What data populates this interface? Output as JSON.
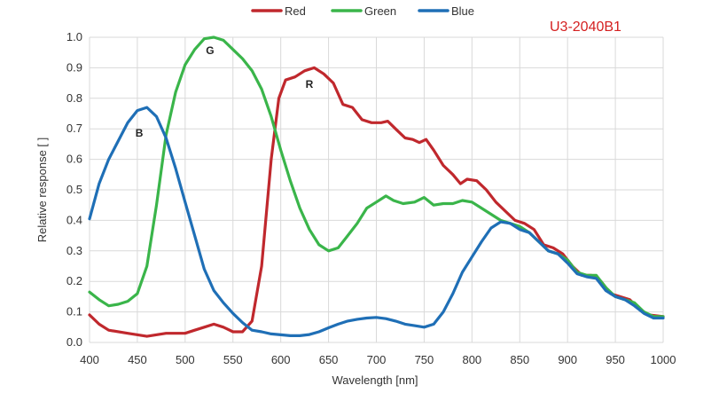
{
  "chart_data": {
    "type": "line",
    "title": "",
    "model_label": "U3-2040B1",
    "xlabel": "Wavelength [nm]",
    "ylabel": "Relative response [ ]",
    "xlim": [
      400,
      1000
    ],
    "ylim": [
      0,
      1.0
    ],
    "x_ticks": [
      "400",
      "450",
      "500",
      "550",
      "600",
      "650",
      "700",
      "750",
      "800",
      "850",
      "900",
      "950",
      "1000"
    ],
    "y_ticks": [
      "0.0",
      "0.1",
      "0.2",
      "0.3",
      "0.4",
      "0.5",
      "0.6",
      "0.7",
      "0.8",
      "0.9",
      "1.0"
    ],
    "grid": true,
    "legend_position": "top-center",
    "annotations": [
      {
        "text": "G",
        "x": 526,
        "y": 0.945
      },
      {
        "text": "R",
        "x": 630,
        "y": 0.835
      },
      {
        "text": "B",
        "x": 452,
        "y": 0.675
      }
    ],
    "series": [
      {
        "name": "Red",
        "color": "#c0282d",
        "points": [
          [
            400,
            0.09
          ],
          [
            410,
            0.06
          ],
          [
            420,
            0.04
          ],
          [
            440,
            0.03
          ],
          [
            460,
            0.02
          ],
          [
            480,
            0.03
          ],
          [
            500,
            0.03
          ],
          [
            510,
            0.04
          ],
          [
            520,
            0.05
          ],
          [
            530,
            0.06
          ],
          [
            540,
            0.05
          ],
          [
            550,
            0.035
          ],
          [
            560,
            0.035
          ],
          [
            570,
            0.07
          ],
          [
            580,
            0.25
          ],
          [
            590,
            0.6
          ],
          [
            598,
            0.8
          ],
          [
            605,
            0.86
          ],
          [
            615,
            0.87
          ],
          [
            625,
            0.89
          ],
          [
            635,
            0.9
          ],
          [
            645,
            0.88
          ],
          [
            655,
            0.85
          ],
          [
            665,
            0.78
          ],
          [
            675,
            0.77
          ],
          [
            685,
            0.73
          ],
          [
            695,
            0.72
          ],
          [
            705,
            0.72
          ],
          [
            712,
            0.725
          ],
          [
            720,
            0.7
          ],
          [
            730,
            0.67
          ],
          [
            738,
            0.665
          ],
          [
            745,
            0.655
          ],
          [
            752,
            0.665
          ],
          [
            760,
            0.63
          ],
          [
            770,
            0.58
          ],
          [
            780,
            0.55
          ],
          [
            788,
            0.52
          ],
          [
            795,
            0.535
          ],
          [
            805,
            0.53
          ],
          [
            815,
            0.5
          ],
          [
            825,
            0.46
          ],
          [
            835,
            0.43
          ],
          [
            845,
            0.4
          ],
          [
            855,
            0.39
          ],
          [
            865,
            0.37
          ],
          [
            875,
            0.32
          ],
          [
            885,
            0.31
          ],
          [
            895,
            0.29
          ],
          [
            905,
            0.25
          ],
          [
            915,
            0.22
          ],
          [
            925,
            0.22
          ],
          [
            935,
            0.2
          ],
          [
            945,
            0.16
          ],
          [
            955,
            0.15
          ],
          [
            965,
            0.14
          ],
          [
            975,
            0.11
          ],
          [
            985,
            0.09
          ],
          [
            1000,
            0.085
          ]
        ]
      },
      {
        "name": "Green",
        "color": "#3ab54a",
        "points": [
          [
            400,
            0.165
          ],
          [
            410,
            0.14
          ],
          [
            420,
            0.12
          ],
          [
            430,
            0.125
          ],
          [
            440,
            0.135
          ],
          [
            450,
            0.16
          ],
          [
            460,
            0.25
          ],
          [
            470,
            0.45
          ],
          [
            480,
            0.68
          ],
          [
            490,
            0.82
          ],
          [
            500,
            0.91
          ],
          [
            510,
            0.96
          ],
          [
            520,
            0.995
          ],
          [
            530,
            1.0
          ],
          [
            540,
            0.99
          ],
          [
            550,
            0.96
          ],
          [
            560,
            0.93
          ],
          [
            570,
            0.89
          ],
          [
            580,
            0.83
          ],
          [
            590,
            0.74
          ],
          [
            600,
            0.63
          ],
          [
            610,
            0.53
          ],
          [
            620,
            0.44
          ],
          [
            630,
            0.37
          ],
          [
            640,
            0.32
          ],
          [
            650,
            0.3
          ],
          [
            660,
            0.31
          ],
          [
            670,
            0.35
          ],
          [
            680,
            0.39
          ],
          [
            690,
            0.44
          ],
          [
            700,
            0.46
          ],
          [
            710,
            0.48
          ],
          [
            718,
            0.465
          ],
          [
            728,
            0.455
          ],
          [
            740,
            0.46
          ],
          [
            750,
            0.475
          ],
          [
            760,
            0.45
          ],
          [
            770,
            0.455
          ],
          [
            780,
            0.455
          ],
          [
            790,
            0.465
          ],
          [
            800,
            0.46
          ],
          [
            810,
            0.44
          ],
          [
            820,
            0.42
          ],
          [
            830,
            0.4
          ],
          [
            840,
            0.39
          ],
          [
            850,
            0.38
          ],
          [
            860,
            0.36
          ],
          [
            870,
            0.33
          ],
          [
            880,
            0.3
          ],
          [
            890,
            0.29
          ],
          [
            900,
            0.27
          ],
          [
            910,
            0.23
          ],
          [
            920,
            0.22
          ],
          [
            930,
            0.22
          ],
          [
            940,
            0.18
          ],
          [
            950,
            0.15
          ],
          [
            960,
            0.14
          ],
          [
            970,
            0.13
          ],
          [
            980,
            0.1
          ],
          [
            990,
            0.085
          ],
          [
            1000,
            0.085
          ]
        ]
      },
      {
        "name": "Blue",
        "color": "#1f6fb6",
        "points": [
          [
            400,
            0.405
          ],
          [
            410,
            0.52
          ],
          [
            420,
            0.6
          ],
          [
            430,
            0.66
          ],
          [
            440,
            0.72
          ],
          [
            450,
            0.76
          ],
          [
            460,
            0.77
          ],
          [
            470,
            0.74
          ],
          [
            480,
            0.67
          ],
          [
            490,
            0.57
          ],
          [
            500,
            0.46
          ],
          [
            510,
            0.35
          ],
          [
            520,
            0.24
          ],
          [
            530,
            0.17
          ],
          [
            540,
            0.13
          ],
          [
            550,
            0.095
          ],
          [
            560,
            0.065
          ],
          [
            570,
            0.04
          ],
          [
            580,
            0.035
          ],
          [
            590,
            0.028
          ],
          [
            600,
            0.025
          ],
          [
            610,
            0.022
          ],
          [
            620,
            0.022
          ],
          [
            630,
            0.026
          ],
          [
            640,
            0.035
          ],
          [
            650,
            0.048
          ],
          [
            660,
            0.06
          ],
          [
            670,
            0.07
          ],
          [
            680,
            0.076
          ],
          [
            690,
            0.08
          ],
          [
            700,
            0.082
          ],
          [
            710,
            0.078
          ],
          [
            720,
            0.07
          ],
          [
            730,
            0.06
          ],
          [
            740,
            0.055
          ],
          [
            750,
            0.05
          ],
          [
            760,
            0.06
          ],
          [
            770,
            0.1
          ],
          [
            780,
            0.16
          ],
          [
            790,
            0.23
          ],
          [
            800,
            0.28
          ],
          [
            810,
            0.33
          ],
          [
            820,
            0.375
          ],
          [
            830,
            0.395
          ],
          [
            840,
            0.39
          ],
          [
            850,
            0.37
          ],
          [
            860,
            0.36
          ],
          [
            870,
            0.33
          ],
          [
            880,
            0.3
          ],
          [
            890,
            0.29
          ],
          [
            900,
            0.26
          ],
          [
            910,
            0.225
          ],
          [
            920,
            0.215
          ],
          [
            930,
            0.21
          ],
          [
            940,
            0.17
          ],
          [
            950,
            0.15
          ],
          [
            960,
            0.14
          ],
          [
            970,
            0.12
          ],
          [
            980,
            0.095
          ],
          [
            990,
            0.08
          ],
          [
            1000,
            0.08
          ]
        ]
      }
    ]
  }
}
